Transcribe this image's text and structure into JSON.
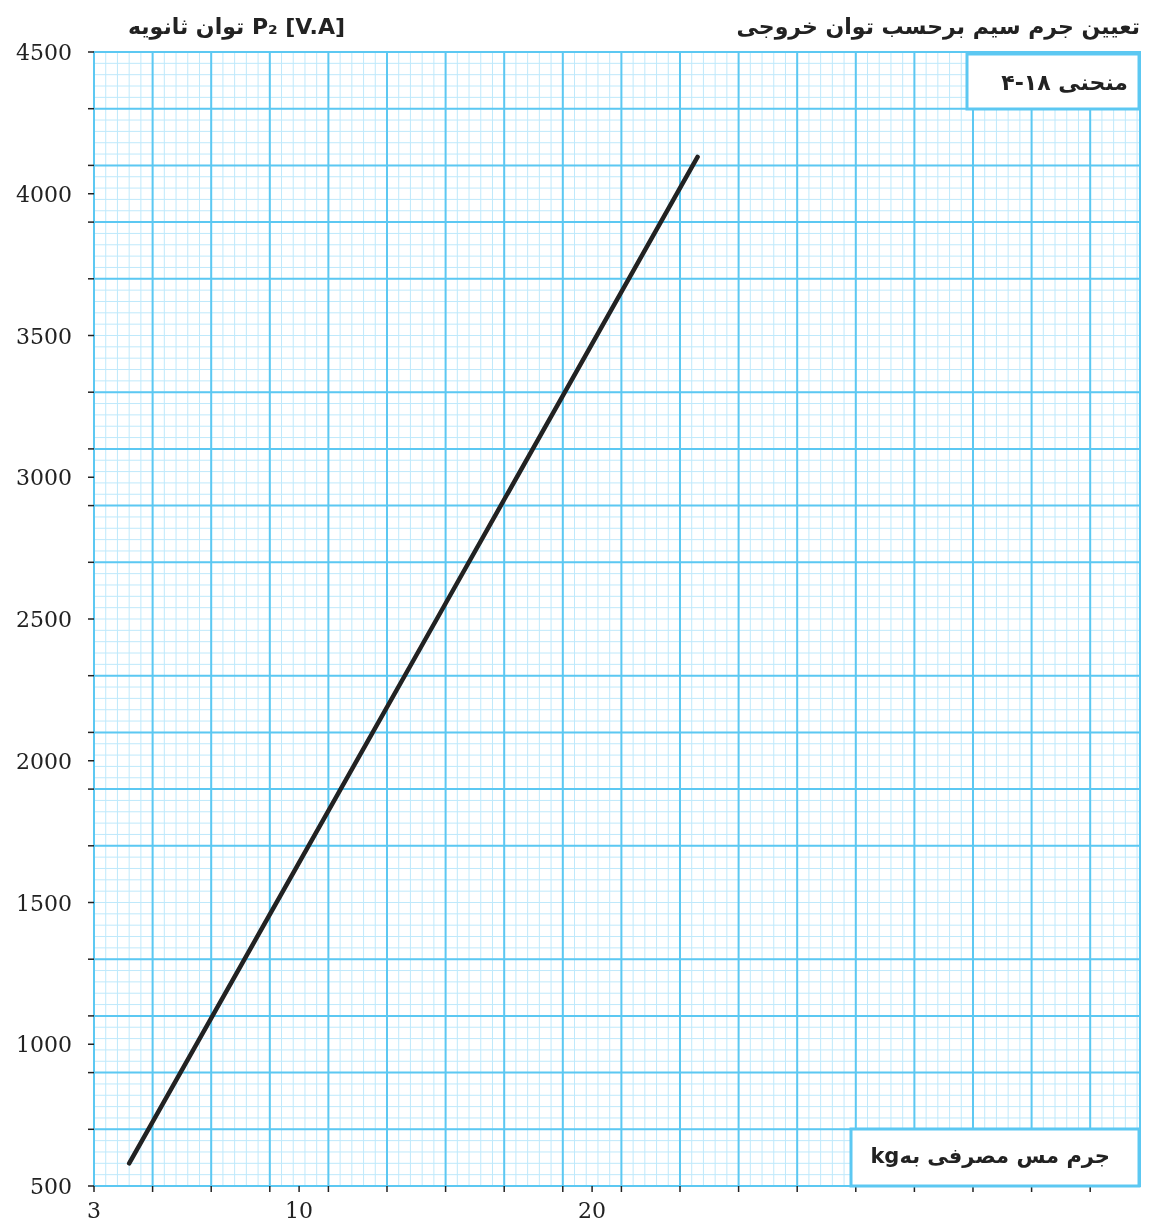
{
  "chart_data": {
    "type": "line",
    "title": "تعیین جرم سیم برحسب توان خروجی",
    "ylabel": "P₂ [V.A] توان ثانویه",
    "xlabel": "جرم مس مصرفی بهkg",
    "annotations": [
      "منحنی ۱۸-۴"
    ],
    "x": [
      4.2,
      14.7,
      23.6
    ],
    "series": [
      {
        "color": "#222222",
        "values": [
          580,
          2500,
          4130
        ]
      }
    ],
    "xlim": [
      3,
      38.7
    ],
    "ylim": [
      500,
      4500
    ],
    "xticks": [
      3,
      10,
      20,
      {
        "value": 5,
        "label": null
      },
      {
        "value": 7,
        "label": null
      },
      {
        "value": 9,
        "label": null
      },
      {
        "value": 11,
        "label": null
      },
      {
        "value": 13,
        "label": null
      },
      {
        "value": 15,
        "label": null
      },
      {
        "value": 17,
        "label": null
      },
      {
        "value": 19,
        "label": null
      },
      {
        "value": 21,
        "label": null
      },
      {
        "value": 23,
        "label": null
      },
      {
        "value": 25,
        "label": null
      },
      {
        "value": 27,
        "label": null
      },
      {
        "value": 29,
        "label": null
      },
      {
        "value": 31,
        "label": null
      },
      {
        "value": 33,
        "label": null
      },
      {
        "value": 35,
        "label": null
      },
      {
        "value": 37,
        "label": null
      }
    ],
    "yticks": [
      500,
      1000,
      1500,
      2000,
      2500,
      3000,
      3500,
      4000,
      4500,
      {
        "value": 700,
        "label": null
      },
      {
        "value": 900,
        "label": null
      },
      {
        "value": 1100,
        "label": null
      },
      {
        "value": 1300,
        "label": null
      },
      {
        "value": 1700,
        "label": null
      },
      {
        "value": 1900,
        "label": null
      },
      {
        "value": 2100,
        "label": null
      },
      {
        "value": 2300,
        "label": null
      },
      {
        "value": 2700,
        "label": null
      },
      {
        "value": 2900,
        "label": null
      },
      {
        "value": 3100,
        "label": null
      },
      {
        "value": 3300,
        "label": null
      },
      {
        "value": 3700,
        "label": null
      },
      {
        "value": 3900,
        "label": null
      },
      {
        "value": 4100,
        "label": null
      },
      {
        "value": 4300,
        "label": null
      }
    ],
    "grid": true,
    "marker": "none",
    "line_style": "solid"
  }
}
